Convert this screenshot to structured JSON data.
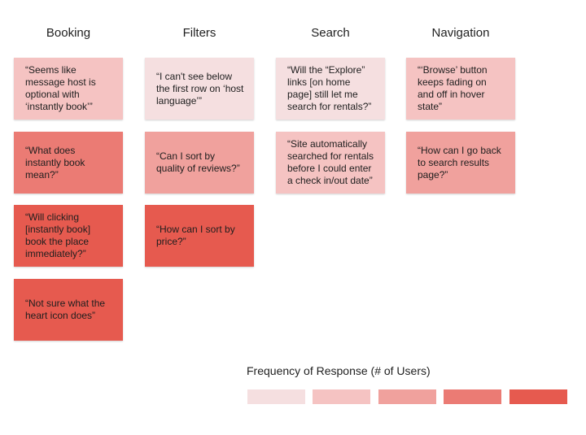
{
  "columns": [
    {
      "name": "Booking"
    },
    {
      "name": "Filters"
    },
    {
      "name": "Search"
    },
    {
      "name": "Navigation"
    }
  ],
  "notes": {
    "booking": [
      {
        "text": "“Seems like message host is optional with ‘instantly book’”",
        "frequency_level": 2
      },
      {
        "text": "“What does instantly book mean?”",
        "frequency_level": 4
      },
      {
        "text": "“Will clicking [instantly book] book the place immediately?”",
        "frequency_level": 5
      },
      {
        "text": "“Not sure what the heart icon does”",
        "frequency_level": 5
      }
    ],
    "filters": [
      {
        "text": "“I can't see below the first row on ‘host language’”",
        "frequency_level": 1
      },
      {
        "text": "“Can I sort by quality of reviews?”",
        "frequency_level": 3
      },
      {
        "text": "“How can I sort by price?”",
        "frequency_level": 5
      }
    ],
    "search": [
      {
        "text": "“Will the “Explore” links [on home page] still let me search for rentals?”",
        "frequency_level": 1
      },
      {
        "text": "“Site automatically searched for rentals before I could enter a check in/out date”",
        "frequency_level": 2
      }
    ],
    "navigation": [
      {
        "text": "“‘Browse’ button keeps fading on and off in hover state”",
        "frequency_level": 2
      },
      {
        "text": "“How can I go back to search results page?”",
        "frequency_level": 3
      }
    ]
  },
  "legend": {
    "title": "Frequency of Response (# of Users)",
    "levels": [
      1,
      2,
      3,
      4,
      5
    ],
    "colors": [
      "#f5dfe0",
      "#f5c3c2",
      "#f0a19d",
      "#eb7b74",
      "#e65a4f"
    ]
  }
}
